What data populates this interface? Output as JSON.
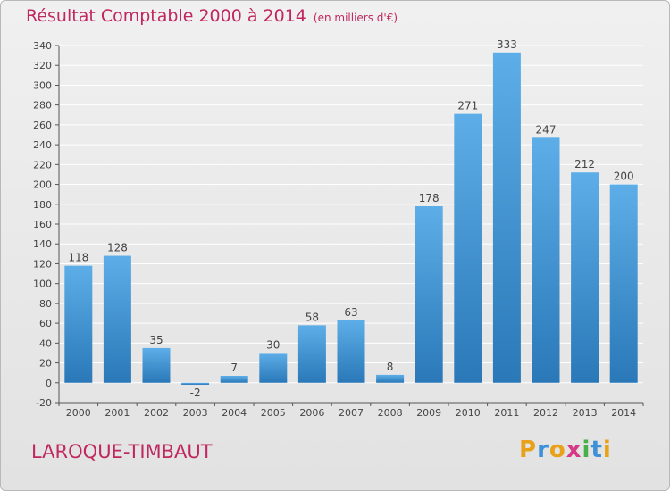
{
  "title": "Résultat Comptable 2000 à 2014",
  "subtitle": "(en milliers d'€)",
  "place": "LAROQUE-TIMBAUT",
  "logo_text": "Proxiti",
  "colors": {
    "title": "#c0275f",
    "bar_light": "#5daee8",
    "bar_dark": "#2a78b8",
    "grid": "#ffffff"
  },
  "chart_data": {
    "type": "bar",
    "title": "Résultat Comptable 2000 à 2014",
    "subtitle": "(en milliers d'€)",
    "xlabel": "",
    "ylabel": "",
    "categories": [
      "2000",
      "2001",
      "2002",
      "2003",
      "2004",
      "2005",
      "2006",
      "2007",
      "2008",
      "2009",
      "2010",
      "2011",
      "2012",
      "2013",
      "2014"
    ],
    "values": [
      118,
      128,
      35,
      -2,
      7,
      30,
      58,
      63,
      8,
      178,
      271,
      333,
      247,
      212,
      200
    ],
    "ylim": [
      -20,
      340
    ],
    "yticks": [
      -20,
      0,
      20,
      40,
      60,
      80,
      100,
      120,
      140,
      160,
      180,
      200,
      220,
      240,
      260,
      280,
      300,
      320,
      340
    ],
    "grid": true,
    "data_labels": true
  }
}
